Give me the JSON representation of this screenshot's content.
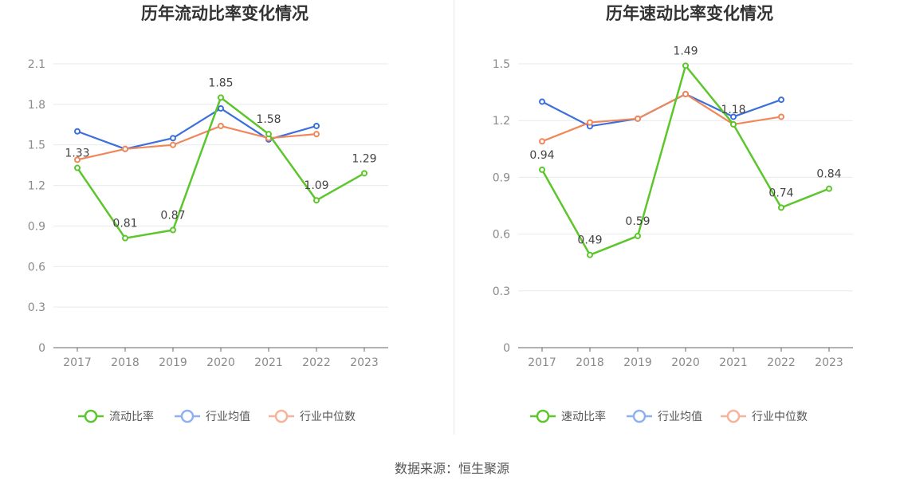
{
  "colors": {
    "series1": "#5cc62c",
    "series2": "#3b6fdc",
    "series3": "#f0875a",
    "grid": "#e6e9f0",
    "axis": "#666666"
  },
  "source": "数据来源：恒生聚源",
  "chart_data": [
    {
      "type": "line",
      "title": "历年流动比率变化情况",
      "categories": [
        "2017",
        "2018",
        "2019",
        "2020",
        "2021",
        "2022",
        "2023"
      ],
      "ylim": [
        0,
        2.1
      ],
      "yticks": [
        "0",
        "0.3",
        "0.6",
        "0.9",
        "1.2",
        "1.5",
        "1.8",
        "2.1"
      ],
      "grid": true,
      "legend_position": "bottom",
      "series": [
        {
          "name": "流动比率",
          "values": [
            1.33,
            0.81,
            0.87,
            1.85,
            1.58,
            1.09,
            1.29
          ],
          "labels": [
            "1.33",
            "0.81",
            "0.87",
            "1.85",
            "1.58",
            "1.09",
            "1.29"
          ]
        },
        {
          "name": "行业均值",
          "values": [
            1.6,
            1.47,
            1.55,
            1.77,
            1.54,
            1.64,
            null
          ]
        },
        {
          "name": "行业中位数",
          "values": [
            1.39,
            1.47,
            1.5,
            1.64,
            1.55,
            1.58,
            null
          ]
        }
      ]
    },
    {
      "type": "line",
      "title": "历年速动比率变化情况",
      "categories": [
        "2017",
        "2018",
        "2019",
        "2020",
        "2021",
        "2022",
        "2023"
      ],
      "ylim": [
        0,
        1.5
      ],
      "yticks": [
        "0",
        "0.3",
        "0.6",
        "0.9",
        "1.2",
        "1.5"
      ],
      "grid": true,
      "legend_position": "bottom",
      "series": [
        {
          "name": "速动比率",
          "values": [
            0.94,
            0.49,
            0.59,
            1.49,
            1.18,
            0.74,
            0.84
          ],
          "labels": [
            "0.94",
            "0.49",
            "0.59",
            "1.49",
            "1.18",
            "0.74",
            "0.84"
          ]
        },
        {
          "name": "行业均值",
          "values": [
            1.3,
            1.17,
            1.21,
            1.34,
            1.22,
            1.31,
            null
          ]
        },
        {
          "name": "行业中位数",
          "values": [
            1.09,
            1.19,
            1.21,
            1.34,
            1.18,
            1.22,
            null
          ]
        }
      ]
    }
  ]
}
